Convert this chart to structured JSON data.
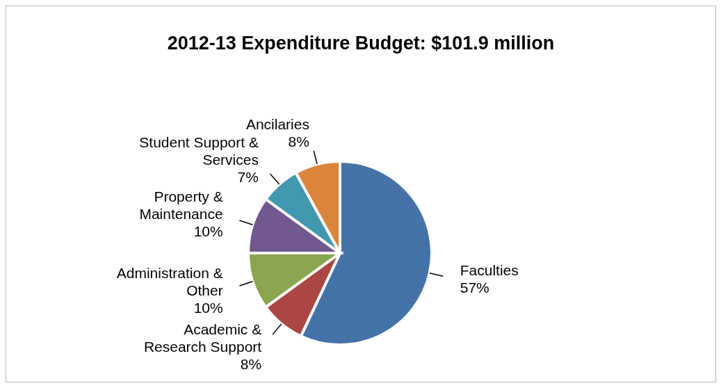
{
  "chart_data": {
    "type": "pie",
    "title": "2012-13 Expenditure Budget: $101.9 million",
    "categories": [
      "Faculties",
      "Academic & Research Support",
      "Administration & Other",
      "Property & Maintenance",
      "Student Support & Services",
      "Ancilaries"
    ],
    "values": [
      57,
      8,
      10,
      10,
      7,
      8
    ],
    "colors": [
      "#4572a7",
      "#aa4643",
      "#89a54e",
      "#71588f",
      "#4198af",
      "#db843d"
    ],
    "value_labels": [
      "57%",
      "8%",
      "10%",
      "10%",
      "7%",
      "8%"
    ],
    "legend": false
  }
}
